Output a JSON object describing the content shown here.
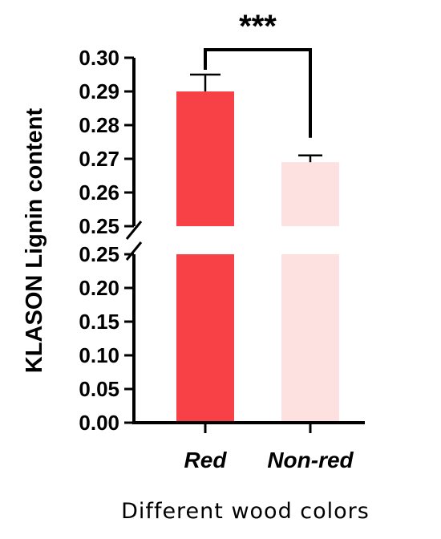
{
  "chart_data": {
    "type": "bar",
    "categories": [
      "Red",
      "Non-red"
    ],
    "values": [
      0.29,
      0.269
    ],
    "errors": [
      0.005,
      0.002
    ],
    "colors": [
      "#f84146",
      "#fde0e0"
    ],
    "ylabel": "KLASON Lignin content",
    "xlabel": "Different wood colors",
    "axis_break": {
      "lower": 0.25,
      "upper": 0.25
    },
    "lower_segment": {
      "ylim": [
        0.0,
        0.25
      ],
      "ticks": [
        "0.00",
        "0.05",
        "0.10",
        "0.15",
        "0.20",
        "0.25"
      ]
    },
    "upper_segment": {
      "ylim": [
        0.25,
        0.3
      ],
      "ticks": [
        "0.25",
        "0.26",
        "0.27",
        "0.28",
        "0.29",
        "0.30"
      ]
    },
    "significance": {
      "label": "***",
      "between": [
        "Red",
        "Non-red"
      ]
    },
    "grid": false,
    "legend": "none"
  }
}
